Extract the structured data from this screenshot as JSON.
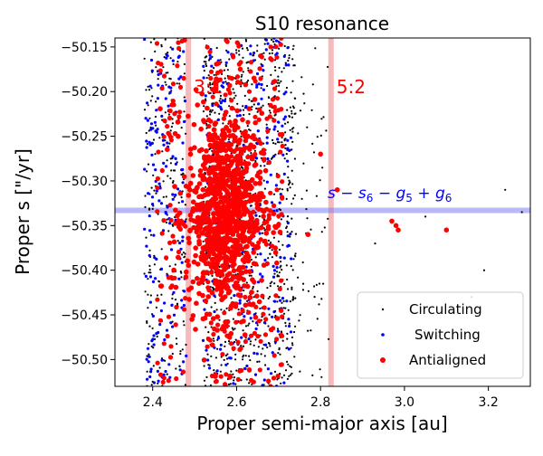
{
  "chart_data": {
    "type": "scatter",
    "title": "S10 resonance",
    "xlabel": "Proper semi-major axis [au]",
    "ylabel": "Proper s [\"/yr]",
    "xlim": [
      2.31,
      3.3
    ],
    "ylim": [
      -50.53,
      -50.14
    ],
    "x_ticks": [
      "2.4",
      "2.6",
      "2.8",
      "3.0",
      "3.2"
    ],
    "x_tick_values": [
      2.4,
      2.6,
      2.8,
      3.0,
      3.2
    ],
    "y_ticks": [
      "−50.15",
      "−50.20",
      "−50.25",
      "−50.30",
      "−50.35",
      "−50.40",
      "−50.45",
      "−50.50"
    ],
    "y_tick_values": [
      -50.15,
      -50.2,
      -50.25,
      -50.3,
      -50.35,
      -50.4,
      -50.45,
      -50.5
    ],
    "grid": false,
    "legend_position": "lower-right",
    "resonances": [
      {
        "label": "3:1",
        "x": 2.485,
        "color": "#f08080"
      },
      {
        "label": "5:2",
        "x": 2.825,
        "color": "#f08080"
      }
    ],
    "secular_line": {
      "y": -50.333,
      "color": "#8080f0"
    },
    "secular_label_parts": [
      "s",
      " − ",
      "s",
      "6",
      " − ",
      "g",
      "5",
      " + ",
      "g",
      "6"
    ],
    "series": [
      {
        "name": "Circulating",
        "color": "#000000"
      },
      {
        "name": "Switching",
        "color": "#0000ff"
      },
      {
        "name": "Antialigned",
        "color": "#ff0000"
      }
    ]
  }
}
